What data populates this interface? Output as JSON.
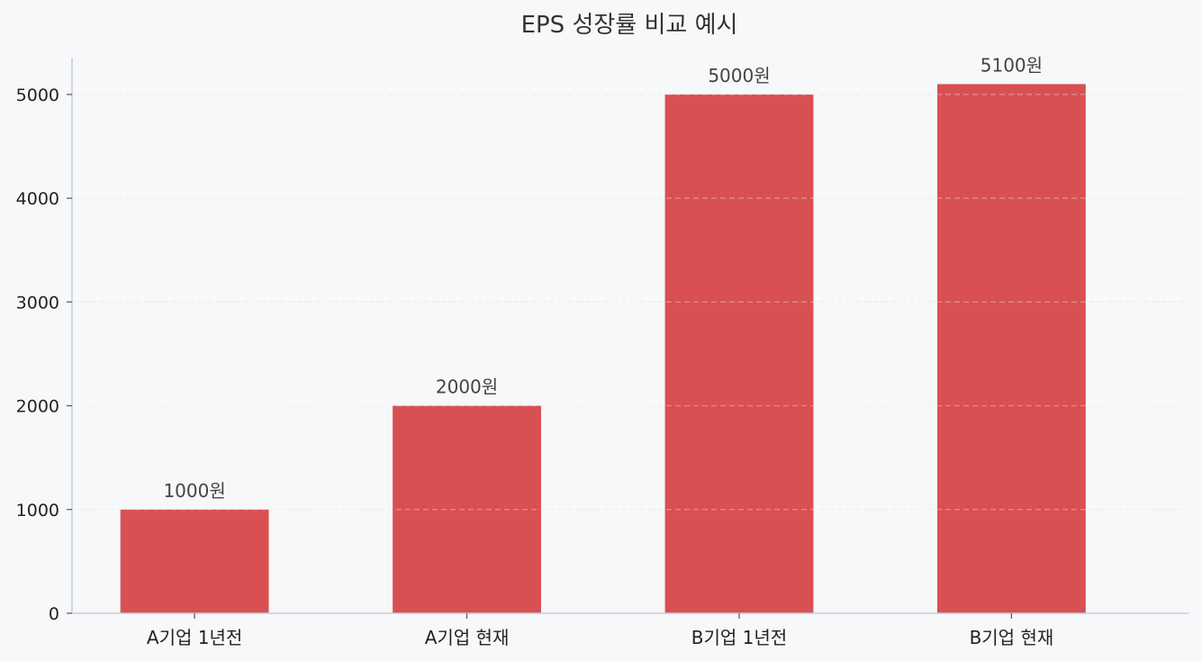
{
  "chart_data": {
    "type": "bar",
    "title": "EPS 성장률 비교 예시",
    "xlabel": "",
    "ylabel": "",
    "categories": [
      "A기업 1년전",
      "A기업 현재",
      "B기업 1년전",
      "B기업 현재"
    ],
    "values": [
      1000,
      2000,
      5000,
      5100
    ],
    "data_labels": [
      "1000원",
      "2000원",
      "5000원",
      "5100원"
    ],
    "yticks": [
      0,
      1000,
      2000,
      3000,
      4000,
      5000
    ],
    "ylim": [
      0,
      5355
    ],
    "grid": "horizontal dashed",
    "legend": "none",
    "colors": {
      "bar": "#d95052",
      "background": "#f7f8fa",
      "grid": "#e3e6ea",
      "axis": "#c8ccd2"
    }
  }
}
